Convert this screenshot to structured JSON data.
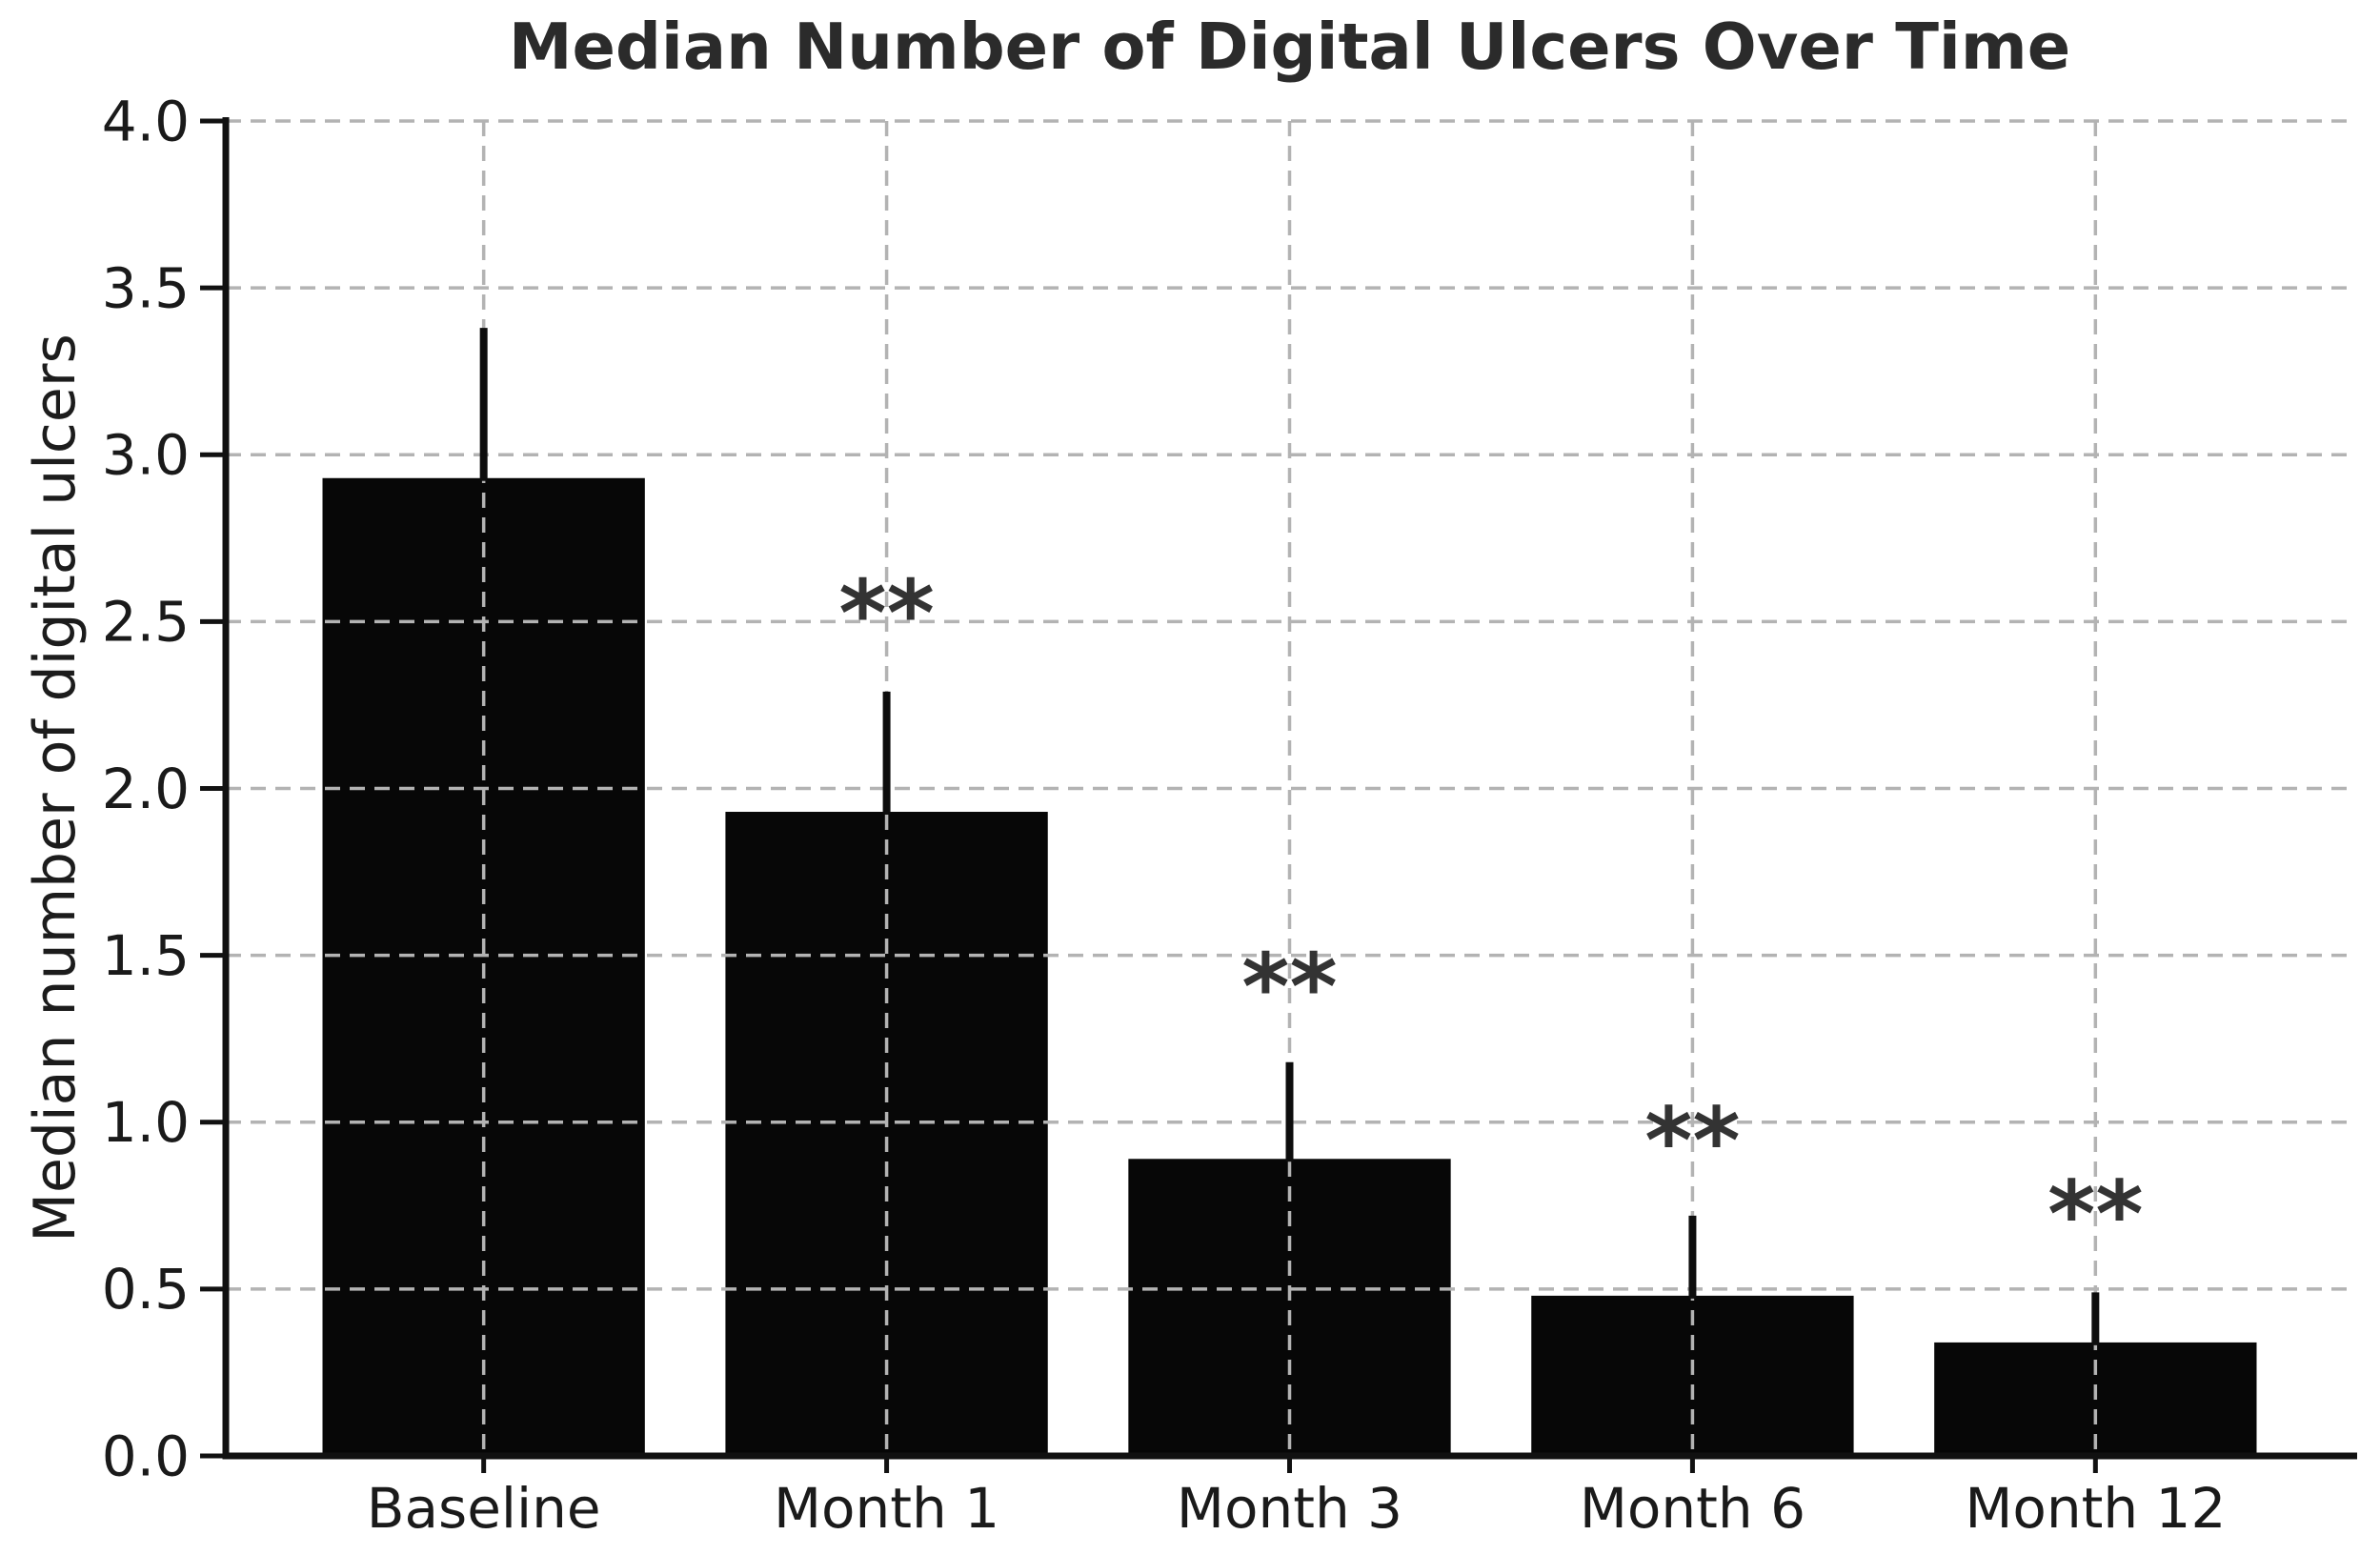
{
  "chart_data": {
    "type": "bar",
    "title": "Median Number of Digital Ulcers Over Time",
    "xlabel": "",
    "ylabel": "Median number of digital ulcers",
    "categories": [
      "Baseline",
      "Month 1",
      "Month 3",
      "Month 6",
      "Month 12"
    ],
    "values": [
      2.93,
      1.93,
      0.89,
      0.48,
      0.34
    ],
    "errors_upper": [
      0.45,
      0.36,
      0.29,
      0.24,
      0.15
    ],
    "annotations": [
      {
        "category": "Month 1",
        "text": "**",
        "y": 2.56
      },
      {
        "category": "Month 3",
        "text": "**",
        "y": 1.44
      },
      {
        "category": "Month 6",
        "text": "**",
        "y": 0.98
      },
      {
        "category": "Month 12",
        "text": "**",
        "y": 0.76
      }
    ],
    "ylim": [
      0.0,
      4.0
    ],
    "ytick_labels": [
      "0.0",
      "0.5",
      "1.0",
      "1.5",
      "2.0",
      "2.5",
      "3.0",
      "3.5",
      "4.0"
    ],
    "grid": "dashed, horizontal and vertical, drawn over bars",
    "legend": null,
    "colors": {
      "bar": "#070707",
      "error_bar": "#0d0d0d",
      "grid": "#b3b3b3",
      "tick_text": "#1a1a1a",
      "title_text": "#2b2b2b",
      "significance": "#333333",
      "spine": "#111111",
      "background": "#ffffff"
    }
  }
}
